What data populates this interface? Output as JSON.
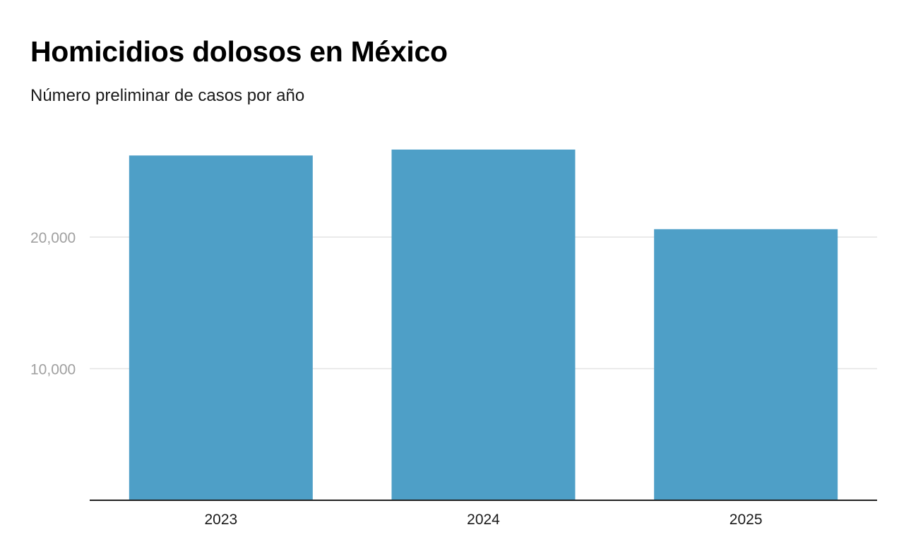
{
  "chart_data": {
    "type": "bar",
    "title": "Homicidios dolosos en México",
    "subtitle": "Número preliminar de casos por año",
    "categories": [
      "2023",
      "2024",
      "2025"
    ],
    "values": [
      26200,
      26650,
      20600
    ],
    "xlabel": "",
    "ylabel": "",
    "ylim": [
      0,
      28000
    ],
    "yticks": [
      10000,
      20000
    ],
    "ytick_labels": [
      "10,000",
      "20,000"
    ],
    "grid": true,
    "legend": "none"
  },
  "colors": {
    "bar": "#4e9fc7",
    "gridline": "#e3e3e3",
    "axis": "#222222",
    "tick_text": "#a0a0a0",
    "category_text": "#1a1a1a"
  }
}
